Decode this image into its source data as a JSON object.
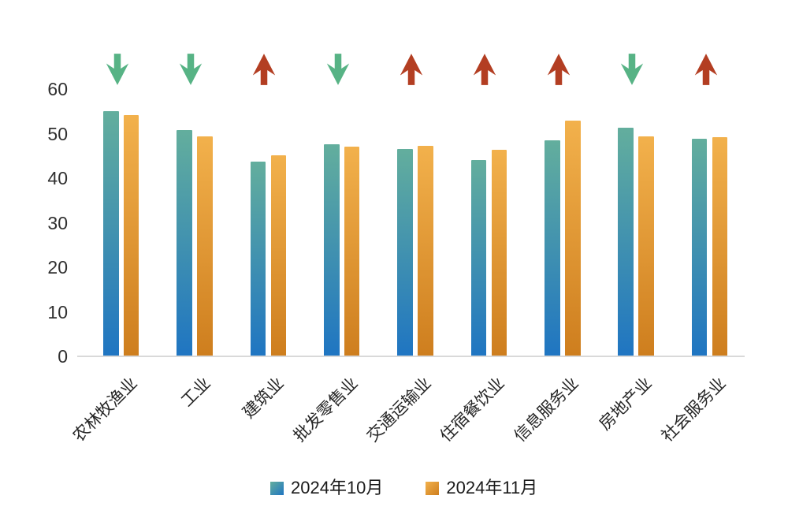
{
  "chart_data": {
    "type": "bar",
    "title": "",
    "categories": [
      "农林牧渔业",
      "工业",
      "建筑业",
      "批发零售业",
      "交通运输业",
      "住宿餐饮业",
      "信息服务业",
      "房地产业",
      "社会服务业"
    ],
    "series": [
      {
        "name": "2024年10月",
        "values": [
          54.9,
          50.6,
          43.6,
          47.5,
          46.5,
          44.0,
          48.4,
          51.2,
          48.8
        ],
        "color_top": "#63AE9D",
        "color_bottom": "#1F75C2"
      },
      {
        "name": "2024年11月",
        "values": [
          54.0,
          49.2,
          45.0,
          46.9,
          47.1,
          46.3,
          52.8,
          49.2,
          49.1
        ],
        "color_top": "#F2B14C",
        "color_bottom": "#CE7E1E"
      }
    ],
    "change_direction": [
      "down",
      "down",
      "up",
      "down",
      "up",
      "up",
      "up",
      "down",
      "up"
    ],
    "arrow_colors": {
      "up": "#B33E22",
      "down": "#57B385"
    },
    "yticks": [
      0,
      10,
      20,
      30,
      40,
      50,
      60
    ],
    "ylim": [
      0,
      60
    ],
    "xlabel": "",
    "ylabel": "",
    "grid": false,
    "legend_position": "bottom-center",
    "axis_line_color": "#d9d9d9"
  }
}
